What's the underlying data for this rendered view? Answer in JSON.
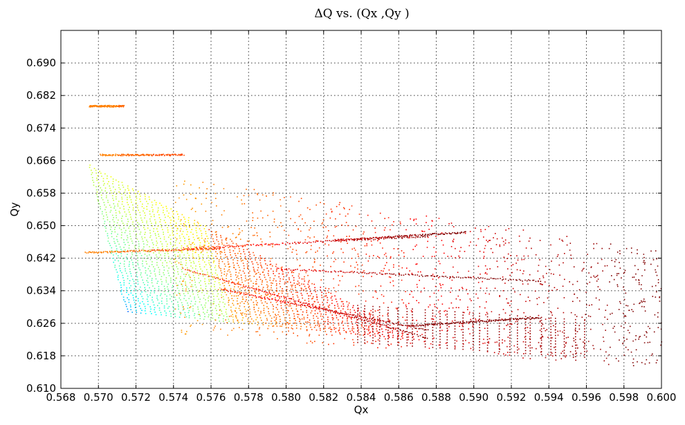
{
  "chart_data": {
    "type": "scatter",
    "title": "ΔQ vs. (Qx ,Qy )",
    "xlabel": "Qx",
    "ylabel": "Qy",
    "xlim": [
      0.568,
      0.6
    ],
    "ylim": [
      0.61,
      0.698
    ],
    "grid": true,
    "colormap": "jet",
    "xticks": [
      "0.568",
      "0.570",
      "0.572",
      "0.574",
      "0.576",
      "0.578",
      "0.580",
      "0.582",
      "0.584",
      "0.586",
      "0.588",
      "0.590",
      "0.592",
      "0.594",
      "0.596",
      "0.598",
      "0.600"
    ],
    "yticks": [
      "0.610",
      "0.618",
      "0.626",
      "0.634",
      "0.642",
      "0.650",
      "0.658",
      "0.666",
      "0.674",
      "0.682",
      "0.690"
    ],
    "structures": {
      "main_fan": {
        "apex": [
          0.5715,
          0.629
        ],
        "left_edge_top": [
          0.5695,
          0.665
        ],
        "bottom_edge_end": [
          0.587,
          0.622
        ]
      },
      "streaks": [
        {
          "from": [
            0.5693,
            0.6435
          ],
          "to": [
            0.5765,
            0.6445
          ]
        },
        {
          "from": [
            0.5745,
            0.6445
          ],
          "to": [
            0.5875,
            0.6475
          ]
        },
        {
          "from": [
            0.5825,
            0.6465
          ],
          "to": [
            0.5895,
            0.6485
          ]
        },
        {
          "from": [
            0.5745,
            0.6395
          ],
          "to": [
            0.5875,
            0.6225
          ]
        },
        {
          "from": [
            0.5765,
            0.6345
          ],
          "to": [
            0.5875,
            0.6245
          ]
        },
        {
          "from": [
            0.5795,
            0.6395
          ],
          "to": [
            0.5935,
            0.6365
          ]
        },
        {
          "from": [
            0.5865,
            0.6255
          ],
          "to": [
            0.5935,
            0.6275
          ]
        },
        {
          "from": [
            0.5695,
            0.6795
          ],
          "to": [
            0.5713,
            0.6795
          ]
        },
        {
          "from": [
            0.5701,
            0.6675
          ],
          "to": [
            0.5745,
            0.6675
          ]
        }
      ],
      "scatter_cloud": {
        "x_range": [
          0.574,
          0.6
        ],
        "y_range": [
          0.612,
          0.66
        ]
      }
    }
  }
}
